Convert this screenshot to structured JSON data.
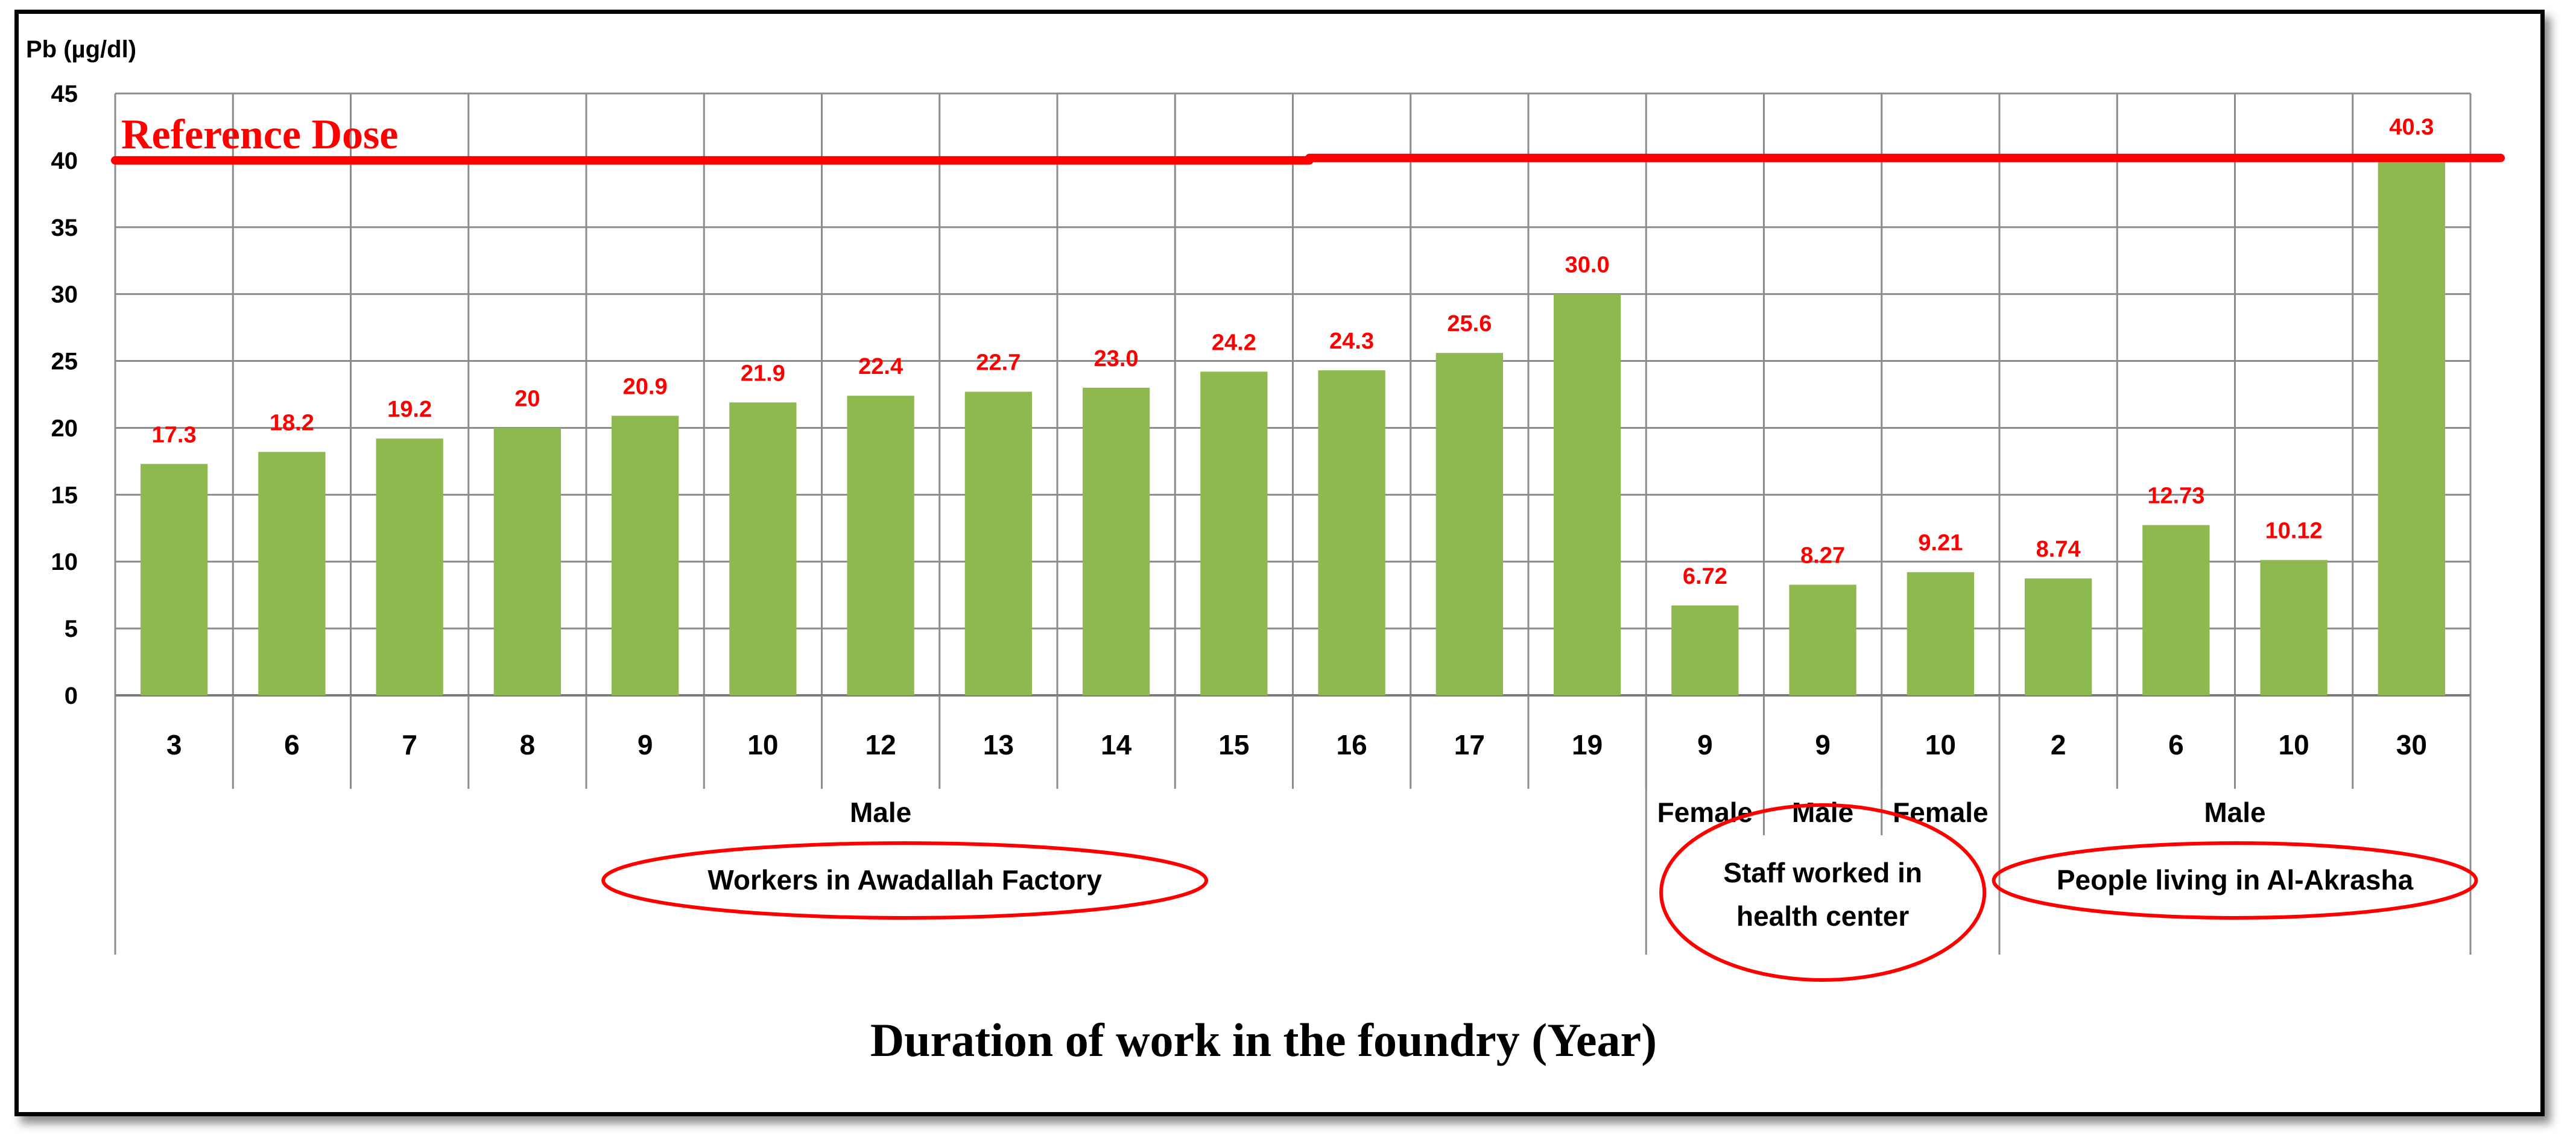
{
  "chart_data": {
    "type": "bar",
    "ylabel": "Pb (µg/dl)",
    "xlabel": "Duration of work in the foundry (Year)",
    "ylim": [
      0,
      45
    ],
    "yticks": [
      0,
      5,
      10,
      15,
      20,
      25,
      30,
      35,
      40,
      45
    ],
    "grid": true,
    "categories": [
      "3",
      "6",
      "7",
      "8",
      "9",
      "10",
      "12",
      "13",
      "14",
      "15",
      "16",
      "17",
      "19",
      "9",
      "9",
      "10",
      "2",
      "6",
      "10",
      "30"
    ],
    "values": [
      17.3,
      18.2,
      19.2,
      20,
      20.9,
      21.9,
      22.4,
      22.7,
      23.0,
      24.2,
      24.3,
      25.6,
      30.0,
      6.72,
      8.27,
      9.21,
      8.74,
      12.73,
      10.12,
      40.3
    ],
    "data_labels": [
      "17.3",
      "18.2",
      "19.2",
      "20",
      "20.9",
      "21.9",
      "22.4",
      "22.7",
      "23.0",
      "24.2",
      "24.3",
      "25.6",
      "30.0",
      "6.72",
      "8.27",
      "9.21",
      "8.74",
      "12.73",
      "10.12",
      "40.3"
    ],
    "bar_color": "#8DB94F",
    "label_color": "#FF0000",
    "reference_line": {
      "label": "Reference Dose",
      "value": 40,
      "color": "#FF0000"
    },
    "gender_groups": [
      {
        "label": "Male",
        "start": 0,
        "end": 12
      },
      {
        "label": "Female",
        "start": 13,
        "end": 13
      },
      {
        "label": "Male",
        "start": 14,
        "end": 14
      },
      {
        "label": "Female",
        "start": 15,
        "end": 15
      },
      {
        "label": "Male",
        "start": 16,
        "end": 19
      }
    ],
    "population_groups": [
      {
        "label": "Workers in Awadallah Factory",
        "start": 0,
        "end": 12
      },
      {
        "label": "Staff worked in health center",
        "lines": [
          "Staff worked in",
          "health center"
        ],
        "start": 13,
        "end": 15
      },
      {
        "label": "People living in Al-Akrasha",
        "start": 16,
        "end": 19
      }
    ]
  }
}
